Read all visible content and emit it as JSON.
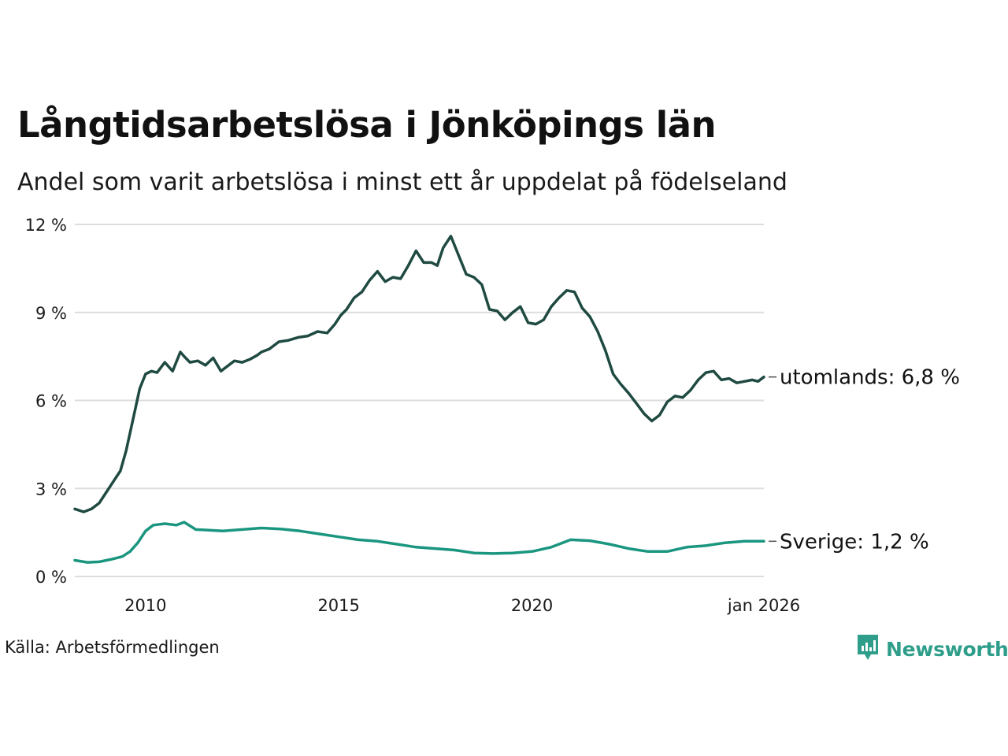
{
  "title": "Långtidsarbetslösa i Jönköpings län",
  "subtitle": "Andel som varit arbetslösa i minst ett år uppdelat på födelseland",
  "source": "Källa: Arbetsförmedlingen",
  "brand": "Newsworthy",
  "colors": {
    "utomlands": "#1f4a42",
    "sverige": "#1a9680",
    "grid": "#dddddd",
    "brand": "#2e9e8a"
  },
  "chart_data": {
    "type": "line",
    "x_range": [
      2008.17,
      2026.0
    ],
    "ylim": [
      0,
      12
    ],
    "y_ticks": [
      0,
      3,
      6,
      9,
      12
    ],
    "y_tick_labels": [
      "0 %",
      "3 %",
      "6 %",
      "9 %",
      "12 %"
    ],
    "x_ticks": [
      2010,
      2015,
      2020,
      2026
    ],
    "x_tick_labels": [
      "2010",
      "2015",
      "2020",
      "jan 2026"
    ],
    "grid": true,
    "series": [
      {
        "name": "utomlands",
        "end_label": "utomlands: 6,8 %",
        "x": [
          2008.17,
          2008.4,
          2008.6,
          2008.8,
          2009.0,
          2009.2,
          2009.35,
          2009.5,
          2009.7,
          2009.85,
          2010.0,
          2010.15,
          2010.3,
          2010.5,
          2010.7,
          2010.9,
          2011.0,
          2011.15,
          2011.35,
          2011.55,
          2011.75,
          2011.95,
          2012.0,
          2012.3,
          2012.5,
          2012.7,
          2012.9,
          2013.0,
          2013.2,
          2013.45,
          2013.7,
          2013.95,
          2014.2,
          2014.45,
          2014.7,
          2014.9,
          2015.05,
          2015.2,
          2015.4,
          2015.6,
          2015.8,
          2016.0,
          2016.2,
          2016.4,
          2016.6,
          2016.8,
          2017.0,
          2017.2,
          2017.4,
          2017.55,
          2017.7,
          2017.8,
          2017.9,
          2018.1,
          2018.3,
          2018.5,
          2018.7,
          2018.9,
          2019.1,
          2019.3,
          2019.5,
          2019.7,
          2019.9,
          2020.1,
          2020.3,
          2020.5,
          2020.7,
          2020.9,
          2021.1,
          2021.3,
          2021.5,
          2021.7,
          2021.9,
          2022.1,
          2022.3,
          2022.5,
          2022.7,
          2022.9,
          2023.1,
          2023.3,
          2023.5,
          2023.7,
          2023.9,
          2024.1,
          2024.3,
          2024.5,
          2024.7,
          2024.9,
          2025.1,
          2025.3,
          2025.5,
          2025.7,
          2025.85,
          2026.0
        ],
        "values": [
          2.3,
          2.2,
          2.3,
          2.5,
          2.9,
          3.3,
          3.6,
          4.3,
          5.5,
          6.4,
          6.9,
          7.0,
          6.95,
          7.3,
          7.0,
          7.65,
          7.5,
          7.3,
          7.35,
          7.2,
          7.45,
          7.0,
          7.05,
          7.35,
          7.3,
          7.4,
          7.55,
          7.65,
          7.75,
          8.0,
          8.05,
          8.15,
          8.2,
          8.35,
          8.3,
          8.6,
          8.9,
          9.1,
          9.5,
          9.7,
          10.1,
          10.4,
          10.05,
          10.2,
          10.15,
          10.6,
          11.1,
          10.7,
          10.7,
          10.6,
          11.2,
          11.4,
          11.6,
          10.95,
          10.3,
          10.2,
          9.95,
          9.1,
          9.05,
          8.75,
          9.0,
          9.2,
          8.65,
          8.6,
          8.75,
          9.2,
          9.5,
          9.75,
          9.7,
          9.15,
          8.85,
          8.35,
          7.7,
          6.9,
          6.55,
          6.25,
          5.9,
          5.55,
          5.3,
          5.5,
          5.95,
          6.15,
          6.1,
          6.35,
          6.7,
          6.95,
          7.0,
          6.7,
          6.75,
          6.6,
          6.65,
          6.7,
          6.65,
          6.8
        ]
      },
      {
        "name": "Sverige",
        "end_label": "Sverige: 1,2 %",
        "x": [
          2008.17,
          2008.5,
          2008.8,
          2009.1,
          2009.4,
          2009.6,
          2009.8,
          2010.0,
          2010.2,
          2010.5,
          2010.8,
          2011.0,
          2011.3,
          2011.6,
          2012.0,
          2012.5,
          2013.0,
          2013.5,
          2014.0,
          2014.5,
          2015.0,
          2015.5,
          2016.0,
          2016.5,
          2017.0,
          2017.5,
          2018.0,
          2018.5,
          2019.0,
          2019.5,
          2020.0,
          2020.5,
          2021.0,
          2021.5,
          2022.0,
          2022.5,
          2023.0,
          2023.5,
          2024.0,
          2024.5,
          2025.0,
          2025.5,
          2026.0
        ],
        "values": [
          0.55,
          0.48,
          0.5,
          0.58,
          0.68,
          0.85,
          1.15,
          1.55,
          1.75,
          1.8,
          1.75,
          1.85,
          1.6,
          1.58,
          1.55,
          1.6,
          1.65,
          1.62,
          1.55,
          1.45,
          1.35,
          1.25,
          1.2,
          1.1,
          1.0,
          0.95,
          0.9,
          0.8,
          0.78,
          0.8,
          0.85,
          1.0,
          1.25,
          1.22,
          1.1,
          0.95,
          0.85,
          0.85,
          1.0,
          1.05,
          1.15,
          1.2,
          1.2
        ]
      }
    ]
  }
}
